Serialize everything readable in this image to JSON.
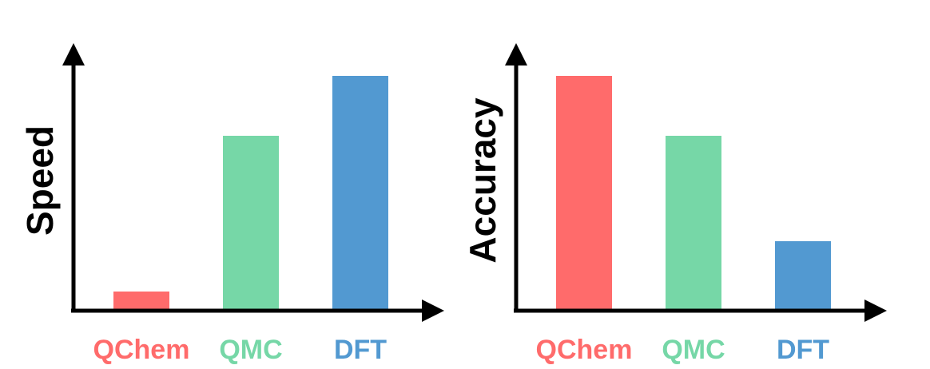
{
  "chart_data": [
    {
      "type": "bar",
      "categories": [
        "QChem",
        "QMC",
        "DFT"
      ],
      "values": [
        0.08,
        0.73,
        0.98
      ],
      "colors": [
        "#ff6b6b",
        "#76d7a7",
        "#5299d1"
      ],
      "ylabel": "Speed",
      "xlabel": "",
      "ylim": [
        0,
        1.1
      ],
      "grid": false,
      "legend": "none"
    },
    {
      "type": "bar",
      "categories": [
        "QChem",
        "QMC",
        "DFT"
      ],
      "values": [
        0.98,
        0.73,
        0.29
      ],
      "colors": [
        "#ff6b6b",
        "#76d7a7",
        "#5299d1"
      ],
      "ylabel": "Accuracy",
      "xlabel": "",
      "ylim": [
        0,
        1.1
      ],
      "grid": false,
      "legend": "none"
    }
  ]
}
